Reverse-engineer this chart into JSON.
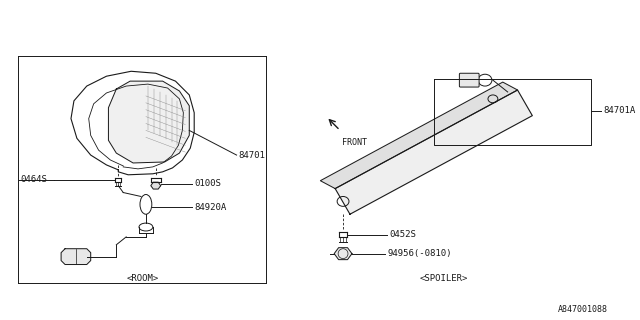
{
  "bg_color": "#ffffff",
  "diagram_number": "A847001088",
  "left_label": "<ROOM>",
  "right_label": "<SPOILER>",
  "front_label": "FRONT",
  "left_parts": {
    "lamp_label": "84701",
    "screw1_label": "0464S",
    "screw2_label": "0100S",
    "wire_label": "84920A"
  },
  "right_parts": {
    "lamp_label": "84701A",
    "screw_label": "0452S",
    "nut_label": "94956(-0810)"
  },
  "line_color": "#1a1a1a",
  "text_color": "#1a1a1a",
  "font_size": 6.5
}
